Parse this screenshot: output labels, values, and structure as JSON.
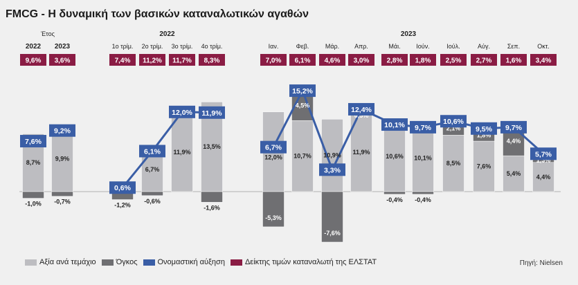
{
  "title": "FMCG - Η δυναμική των βασικών καταναλωτικών αγαθών",
  "source": "Πηγή: Nielsen",
  "colors": {
    "value_per_unit": "#bdbdc1",
    "volume": "#6f6f72",
    "nominal_growth": "#3a5ea6",
    "cpi": "#8a1c44",
    "background": "#f0f0f0"
  },
  "legend": [
    {
      "key": "value_per_unit",
      "label": "Αξία ανά τεμάχιο"
    },
    {
      "key": "volume",
      "label": "Όγκος"
    },
    {
      "key": "nominal_growth",
      "label": "Ονομαστική αύξηση"
    },
    {
      "key": "cpi",
      "label": "Δείκτης τιμών καταναλωτή της ΕΛΣΤΑΤ"
    }
  ],
  "chart_data": {
    "type": "bar",
    "stacked": true,
    "group_headers": [
      {
        "label": "Έτος",
        "columns": [
          0,
          1
        ]
      },
      {
        "label": "2022",
        "columns": [
          2,
          3,
          4,
          5
        ]
      },
      {
        "label": "2023",
        "columns": [
          6,
          7,
          8,
          9,
          10,
          11,
          12,
          13,
          14,
          15
        ]
      }
    ],
    "categories": [
      "2022",
      "2023",
      "1ο τρίμ.",
      "2ο τρίμ.",
      "3ο τρίμ.",
      "4ο τρίμ.",
      "Ιαν.",
      "Φεβ.",
      "Μάρ.",
      "Απρ.",
      "Μάι.",
      "Ιούν.",
      "Ιούλ.",
      "Αύγ.",
      "Σεπ.",
      "Οκτ."
    ],
    "cpi_labels": [
      "9,6%",
      "3,6%",
      "7,4%",
      "11,2%",
      "11,7%",
      "8,3%",
      "7,0%",
      "6,1%",
      "4,6%",
      "3,0%",
      "2,8%",
      "1,8%",
      "2,5%",
      "2,7%",
      "1,6%",
      "3,4%"
    ],
    "series": [
      {
        "name": "Αξία ανά τεμάχιο",
        "values": [
          8.7,
          9.9,
          0,
          6.7,
          11.9,
          13.5,
          12.0,
          10.7,
          10.9,
          11.9,
          10.6,
          10.1,
          8.5,
          7.6,
          5.4,
          4.4
        ],
        "labels": [
          "8,7%",
          "9,9%",
          "",
          "6,7%",
          "11,9%",
          "13,5%",
          "12,0%",
          "10,7%",
          "10,9%",
          "11,9%",
          "10,6%",
          "10,1%",
          "8,5%",
          "7,6%",
          "5,4%",
          "4,4%"
        ]
      },
      {
        "name": "Όγκος",
        "values": [
          -1.0,
          -0.7,
          -1.2,
          -0.6,
          0,
          -1.6,
          -5.3,
          4.5,
          -7.6,
          0.5,
          -0.4,
          -0.4,
          2.1,
          1.8,
          4.4,
          1.3
        ],
        "labels": [
          "-1,0%",
          "-0,7%",
          "-1,2%",
          "-0,6%",
          "",
          "-1,6%",
          "-5,3%",
          "4,5%",
          "-7,6%",
          "0,5%",
          "-0,4%",
          "-0,4%",
          "2,1%",
          "1,8%",
          "4,4%",
          "1,3%"
        ]
      },
      {
        "name": "Ονομαστική αύξηση",
        "values": [
          7.6,
          9.2,
          0.6,
          6.1,
          12.0,
          11.9,
          6.7,
          15.2,
          3.3,
          12.4,
          10.1,
          9.7,
          10.6,
          9.5,
          9.7,
          5.7
        ],
        "labels": [
          "7,6%",
          "9,2%",
          "0,6%",
          "6,1%",
          "12,0%",
          "11,9%",
          "6,7%",
          "15,2%",
          "3,3%",
          "12,4%",
          "10,1%",
          "9,7%",
          "10,6%",
          "9,5%",
          "9,7%",
          "5,7%"
        ]
      }
    ],
    "line_segments": [
      [
        2,
        3,
        4,
        5
      ],
      [
        6,
        7,
        8,
        9,
        10,
        11,
        12,
        13,
        14,
        15
      ]
    ],
    "y_unit": "%"
  }
}
